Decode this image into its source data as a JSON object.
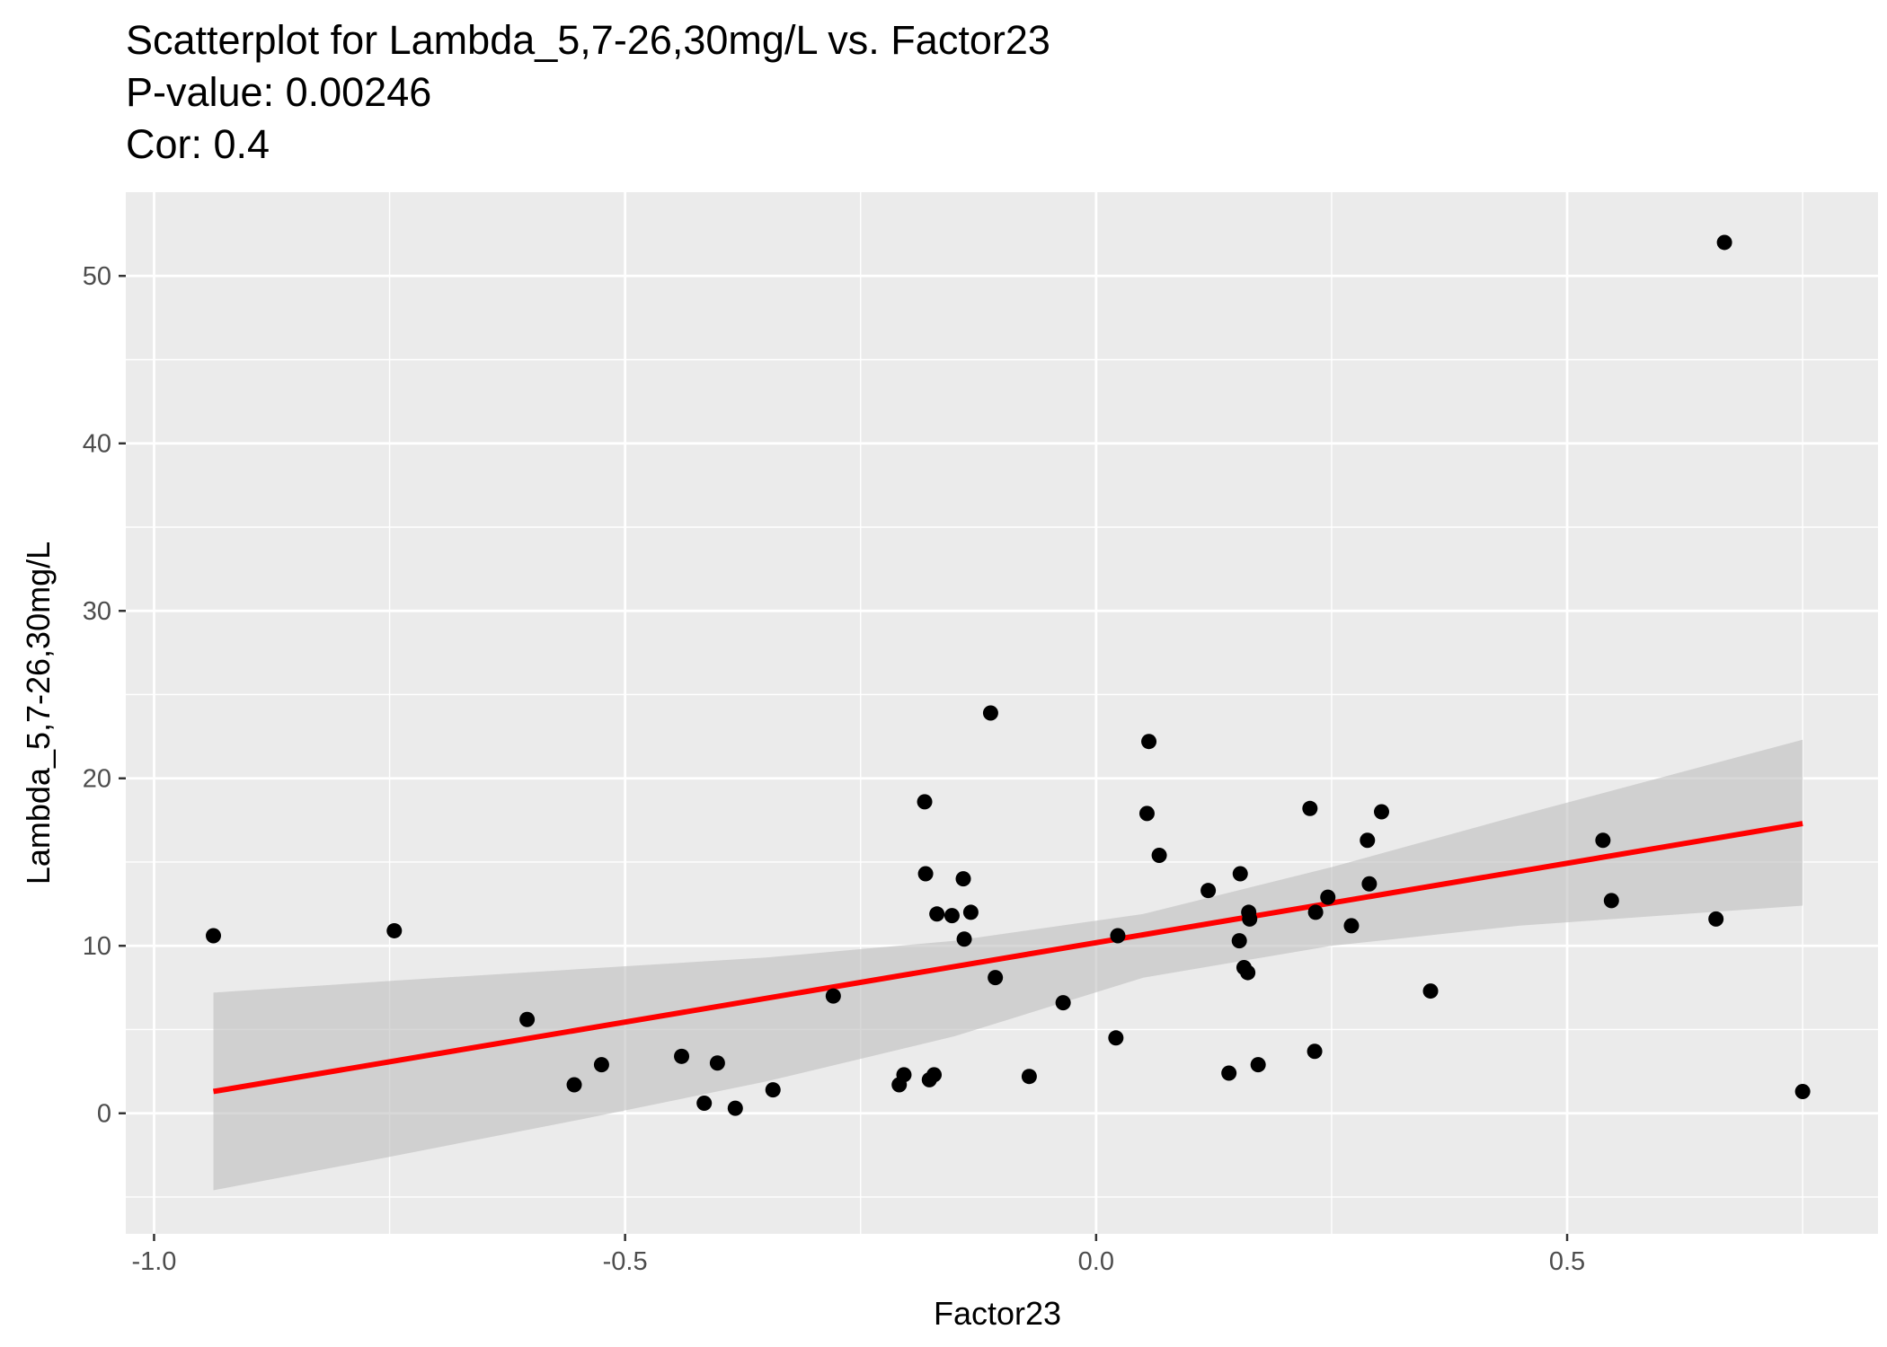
{
  "chart_data": {
    "type": "scatter",
    "title_lines": [
      "Scatterplot for Lambda_5,7-26,30mg/L vs. Factor23",
      "P-value: 0.00246",
      "Cor: 0.4"
    ],
    "xlabel": "Factor23",
    "ylabel": "Lambda_5,7-26,30mg/L",
    "xlim": [
      -1.03,
      0.83
    ],
    "ylim": [
      -7.2,
      55
    ],
    "x_ticks": [
      -1.0,
      -0.5,
      0.0,
      0.5
    ],
    "x_tick_labels": [
      "-1.0",
      "-0.5",
      "0.0",
      "0.5"
    ],
    "y_ticks": [
      0,
      10,
      20,
      30,
      40,
      50
    ],
    "y_tick_labels": [
      "0",
      "10",
      "20",
      "30",
      "40",
      "50"
    ],
    "grid": true,
    "colors": {
      "panel": "#ebebeb",
      "grid": "#ffffff",
      "points": "#000000",
      "fit_line": "#ff0000",
      "confidence_band": "#bebebe"
    },
    "points": [
      {
        "x": -0.937,
        "y": 10.6
      },
      {
        "x": -0.745,
        "y": 10.9
      },
      {
        "x": -0.604,
        "y": 5.6
      },
      {
        "x": -0.554,
        "y": 1.7
      },
      {
        "x": -0.525,
        "y": 2.9
      },
      {
        "x": -0.44,
        "y": 3.4
      },
      {
        "x": -0.416,
        "y": 0.6
      },
      {
        "x": -0.402,
        "y": 3.0
      },
      {
        "x": -0.383,
        "y": 0.3
      },
      {
        "x": -0.343,
        "y": 1.4
      },
      {
        "x": -0.279,
        "y": 7.0
      },
      {
        "x": -0.209,
        "y": 1.7
      },
      {
        "x": -0.204,
        "y": 2.3
      },
      {
        "x": -0.182,
        "y": 18.6
      },
      {
        "x": -0.181,
        "y": 14.3
      },
      {
        "x": -0.177,
        "y": 2.0
      },
      {
        "x": -0.172,
        "y": 2.3
      },
      {
        "x": -0.169,
        "y": 11.9
      },
      {
        "x": -0.153,
        "y": 11.8
      },
      {
        "x": -0.141,
        "y": 14.0
      },
      {
        "x": -0.14,
        "y": 10.4
      },
      {
        "x": -0.133,
        "y": 12.0
      },
      {
        "x": -0.112,
        "y": 23.9
      },
      {
        "x": -0.107,
        "y": 8.1
      },
      {
        "x": -0.071,
        "y": 2.2
      },
      {
        "x": -0.035,
        "y": 6.6
      },
      {
        "x": 0.021,
        "y": 4.5
      },
      {
        "x": 0.023,
        "y": 10.6
      },
      {
        "x": 0.054,
        "y": 17.9
      },
      {
        "x": 0.056,
        "y": 22.2
      },
      {
        "x": 0.067,
        "y": 15.4
      },
      {
        "x": 0.119,
        "y": 13.3
      },
      {
        "x": 0.141,
        "y": 2.4
      },
      {
        "x": 0.152,
        "y": 10.3
      },
      {
        "x": 0.153,
        "y": 14.3
      },
      {
        "x": 0.157,
        "y": 8.7
      },
      {
        "x": 0.161,
        "y": 8.4
      },
      {
        "x": 0.162,
        "y": 12.0
      },
      {
        "x": 0.163,
        "y": 11.6
      },
      {
        "x": 0.172,
        "y": 2.9
      },
      {
        "x": 0.227,
        "y": 18.2
      },
      {
        "x": 0.232,
        "y": 3.7
      },
      {
        "x": 0.233,
        "y": 12.0
      },
      {
        "x": 0.246,
        "y": 12.9
      },
      {
        "x": 0.271,
        "y": 11.2
      },
      {
        "x": 0.288,
        "y": 16.3
      },
      {
        "x": 0.29,
        "y": 13.7
      },
      {
        "x": 0.303,
        "y": 18.0
      },
      {
        "x": 0.355,
        "y": 7.3
      },
      {
        "x": 0.538,
        "y": 16.3
      },
      {
        "x": 0.547,
        "y": 12.7
      },
      {
        "x": 0.658,
        "y": 11.6
      },
      {
        "x": 0.667,
        "y": 52.0
      },
      {
        "x": 0.75,
        "y": 1.3
      }
    ],
    "fit_line": {
      "x": [
        -0.937,
        0.75
      ],
      "y": [
        1.3,
        17.3
      ]
    },
    "confidence_band": {
      "x": [
        -0.937,
        -0.75,
        -0.55,
        -0.35,
        -0.15,
        0.05,
        0.25,
        0.45,
        0.65,
        0.75
      ],
      "lower": [
        -4.6,
        -2.6,
        -0.4,
        1.9,
        4.6,
        8.1,
        10.0,
        11.2,
        12.0,
        12.4
      ],
      "upper": [
        7.2,
        7.9,
        8.6,
        9.3,
        10.3,
        11.9,
        14.7,
        17.8,
        20.8,
        22.3
      ]
    }
  }
}
